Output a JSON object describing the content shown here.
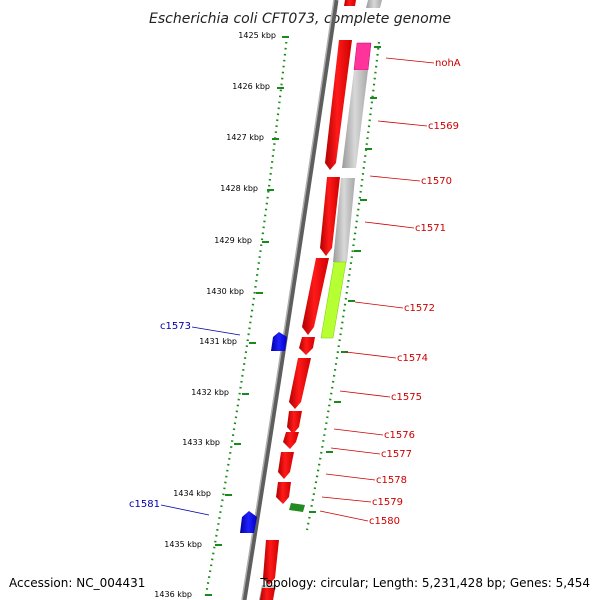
{
  "title": "Escherichia coli CFT073, complete genome",
  "footer": {
    "accession": "Accession: NC_004431",
    "topology": "Topology: circular; Length: 5,231,428 bp; Genes: 5,454"
  },
  "ruler": {
    "labels": [
      "1425 kbp",
      "1426 kbp",
      "1427 kbp",
      "1428 kbp",
      "1429 kbp",
      "1430 kbp",
      "1431 kbp",
      "1432 kbp",
      "1433 kbp",
      "1434 kbp",
      "1435 kbp",
      "1436 kbp"
    ]
  },
  "genes_forward_labels": [
    "nohA",
    "c1569",
    "c1570",
    "c1571",
    "c1572",
    "c1574",
    "c1575",
    "c1576",
    "c1577",
    "c1578",
    "c1579",
    "c1580"
  ],
  "genes_reverse_labels": [
    "c1573",
    "c1581"
  ],
  "colors": {
    "forward_cds": "#ff0000",
    "reverse_cds": "#0000ee",
    "small_cds": "#228b22",
    "forward_label": "#cc0000",
    "reverse_label": "#0000aa",
    "ruler_dots": "#1a8a1a",
    "backbone": "#808080",
    "feature_grey": "#bdbdbd",
    "feature_pink": "#ff3399",
    "feature_lime": "#b5ff33"
  }
}
